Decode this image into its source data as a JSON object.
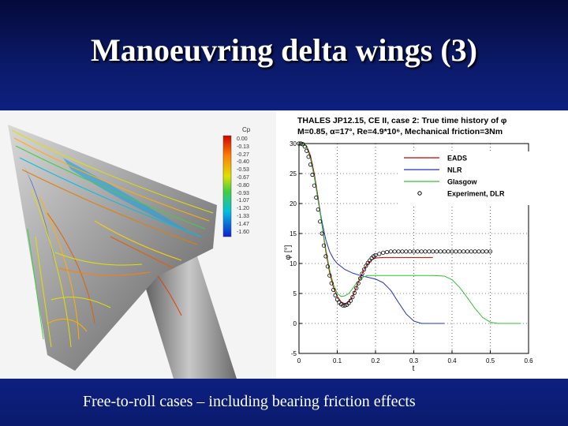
{
  "slide": {
    "title": "Manoeuvring delta wings (3)",
    "footer": "Free-to-roll cases – including bearing friction effects"
  },
  "colorbar": {
    "label": "Cp",
    "ticks": [
      "0.00",
      "-0.13",
      "-0.27",
      "-0.40",
      "-0.53",
      "-0.67",
      "-0.80",
      "-0.93",
      "-1.07",
      "-1.20",
      "-1.33",
      "-1.47",
      "-1.60"
    ]
  },
  "chart_data": {
    "type": "line",
    "title_line1": "THALES JP12.15, CE II, case 2: True time history of φ",
    "title_line2": "M=0.85, α=17°, Re=4.9*10⁶, Mechanical friction=3Nm",
    "xlabel": "t",
    "ylabel": "φ [°]",
    "xlim": [
      0,
      0.6
    ],
    "ylim": [
      -5,
      30
    ],
    "xticks": [
      "0",
      "0.1",
      "0.2",
      "0.3",
      "0.4",
      "0.5",
      "0.6"
    ],
    "yticks": [
      "-5",
      "0",
      "5",
      "10",
      "15",
      "20",
      "25",
      "30"
    ],
    "legend_position": "top-right",
    "series": [
      {
        "name": "EADS",
        "color": "#c00000",
        "x": [
          0,
          0.01,
          0.02,
          0.03,
          0.04,
          0.05,
          0.06,
          0.07,
          0.08,
          0.09,
          0.1,
          0.11,
          0.12,
          0.13,
          0.14,
          0.15,
          0.16,
          0.17,
          0.18,
          0.19,
          0.2,
          0.22,
          0.24,
          0.26,
          0.28,
          0.3,
          0.32,
          0.35
        ],
        "y": [
          30,
          30,
          29.6,
          28,
          25,
          21,
          16.5,
          12,
          8.5,
          6,
          4.5,
          3.6,
          3.3,
          3.6,
          4.5,
          6,
          7.6,
          9,
          10,
          10.6,
          10.9,
          11,
          11,
          11,
          11,
          11,
          11,
          11
        ]
      },
      {
        "name": "NLR",
        "color": "#2030c0",
        "x": [
          0,
          0.01,
          0.02,
          0.03,
          0.04,
          0.05,
          0.06,
          0.07,
          0.08,
          0.09,
          0.1,
          0.12,
          0.14,
          0.16,
          0.18,
          0.2,
          0.22,
          0.24,
          0.26,
          0.28,
          0.3,
          0.32,
          0.34,
          0.36,
          0.38
        ],
        "y": [
          30,
          30,
          29.5,
          27.5,
          24.5,
          20.5,
          17,
          14,
          12,
          10.8,
          10,
          9,
          8.4,
          8,
          7.7,
          7.4,
          6.8,
          5.5,
          3.5,
          1.6,
          0.4,
          0,
          0,
          0,
          0
        ]
      },
      {
        "name": "Glasgow",
        "color": "#30c030",
        "x": [
          0,
          0.01,
          0.02,
          0.03,
          0.04,
          0.05,
          0.06,
          0.07,
          0.08,
          0.09,
          0.1,
          0.11,
          0.12,
          0.13,
          0.14,
          0.15,
          0.16,
          0.17,
          0.18,
          0.2,
          0.25,
          0.3,
          0.35,
          0.38,
          0.4,
          0.42,
          0.44,
          0.46,
          0.48,
          0.5,
          0.52,
          0.55,
          0.58
        ],
        "y": [
          30,
          30,
          29.5,
          27.5,
          24.5,
          20.5,
          16.5,
          12.5,
          9,
          6.5,
          5,
          4.5,
          4.6,
          5,
          5.8,
          6.7,
          7.4,
          7.8,
          8,
          8,
          8,
          8,
          8,
          7.9,
          7.3,
          6,
          4.3,
          2.5,
          1,
          0.2,
          0,
          0,
          0
        ]
      },
      {
        "name": "Experiment, DLR",
        "color": "#000000",
        "marker": "circle",
        "x": [
          0,
          0.005,
          0.01,
          0.015,
          0.02,
          0.025,
          0.03,
          0.035,
          0.04,
          0.045,
          0.05,
          0.055,
          0.06,
          0.065,
          0.07,
          0.075,
          0.08,
          0.085,
          0.09,
          0.095,
          0.1,
          0.105,
          0.11,
          0.115,
          0.12,
          0.125,
          0.13,
          0.135,
          0.14,
          0.145,
          0.15,
          0.155,
          0.16,
          0.165,
          0.17,
          0.175,
          0.18,
          0.185,
          0.19,
          0.195,
          0.2,
          0.21,
          0.22,
          0.23,
          0.24,
          0.25,
          0.26,
          0.27,
          0.28,
          0.29,
          0.3,
          0.31,
          0.32,
          0.33,
          0.34,
          0.35,
          0.36,
          0.37,
          0.38,
          0.39,
          0.4,
          0.41,
          0.42,
          0.43,
          0.44,
          0.45,
          0.46,
          0.47,
          0.48,
          0.49,
          0.5
        ],
        "y": [
          30,
          30,
          29.9,
          29.5,
          28.8,
          27.8,
          26.5,
          24.8,
          23,
          21,
          19,
          17,
          15,
          13,
          11.2,
          9.5,
          8,
          6.7,
          5.6,
          4.7,
          4,
          3.5,
          3.2,
          3,
          3,
          3.1,
          3.4,
          3.8,
          4.4,
          5.1,
          5.9,
          6.7,
          7.5,
          8.3,
          9,
          9.6,
          10.1,
          10.5,
          10.9,
          11.2,
          11.4,
          11.6,
          11.8,
          11.9,
          12,
          12,
          12,
          12,
          12,
          12,
          12,
          12,
          12,
          12,
          12,
          12,
          12,
          12,
          12,
          12,
          12,
          12,
          12,
          12,
          12,
          12,
          12,
          12,
          12,
          12,
          12
        ]
      }
    ]
  }
}
